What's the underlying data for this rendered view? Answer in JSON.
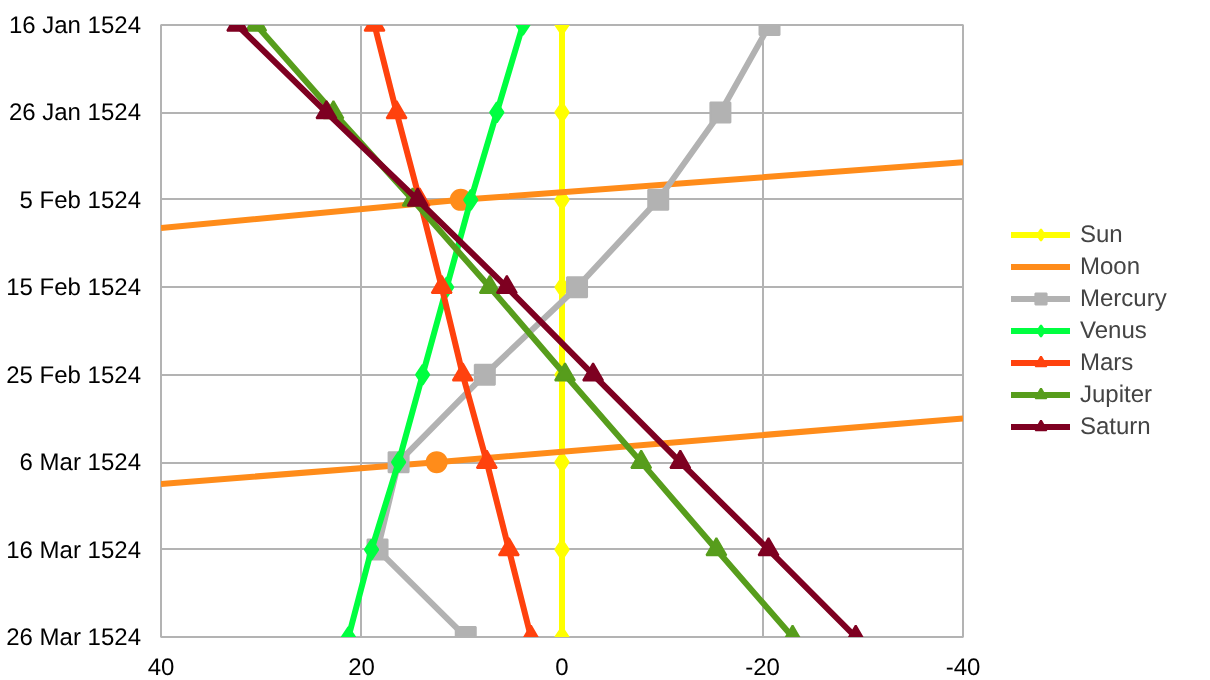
{
  "chart_data": {
    "type": "line",
    "orientation": "horizontal",
    "xlim": [
      40,
      -40
    ],
    "xticks": [
      40,
      20,
      0,
      -20,
      -40
    ],
    "ylim": [
      "1524-03-26",
      "1524-01-16"
    ],
    "yticks": [
      {
        "value": "1524-01-16",
        "label": "16 Jan 1524"
      },
      {
        "value": "1524-01-26",
        "label": "26 Jan 1524"
      },
      {
        "value": "1524-02-05",
        "label": "5 Feb 1524"
      },
      {
        "value": "1524-02-15",
        "label": "15 Feb 1524"
      },
      {
        "value": "1524-02-25",
        "label": "25 Feb 1524"
      },
      {
        "value": "1524-03-06",
        "label": "6 Mar 1524"
      },
      {
        "value": "1524-03-16",
        "label": "16 Mar 1524"
      },
      {
        "value": "1524-03-26",
        "label": "26 Mar 1524"
      }
    ],
    "grid": true,
    "legend": "right",
    "series": [
      {
        "name": "Sun",
        "color": "#ffff00",
        "marker": "diamond",
        "values": [
          0,
          0,
          0,
          0,
          0,
          0,
          0,
          0
        ],
        "x": [
          "1524-01-16",
          "1524-01-26",
          "1524-02-05",
          "1524-02-15",
          "1524-02-25",
          "1524-03-06",
          "1524-03-16",
          "1524-03-26"
        ]
      },
      {
        "name": "Moon",
        "color": "#ff8c1a",
        "marker": "none",
        "values": [
          40,
          10.1,
          -40,
          null,
          40,
          12.5,
          -40
        ],
        "x": [
          "1524-02-08T05:00",
          "1524-02-05",
          "1524-01-31T17:00",
          null,
          "1524-03-08T12:00",
          "1524-03-06",
          "1524-03-01"
        ]
      },
      {
        "type": "scatter",
        "color": "#ff8c1a",
        "marker": "circle",
        "values": [
          10.1,
          12.5
        ],
        "x": [
          "1524-02-05",
          "1524-03-06"
        ]
      },
      {
        "name": "Mercury",
        "color": "#b2b2b2",
        "marker": "square",
        "values": [
          -20.7,
          -15.8,
          -9.6,
          -1.5,
          7.7,
          16.3,
          18.4,
          9.6
        ],
        "x": [
          "1524-01-16",
          "1524-01-26",
          "1524-02-05",
          "1524-02-15",
          "1524-02-25",
          "1524-03-06",
          "1524-03-16",
          "1524-03-26"
        ]
      },
      {
        "name": "Venus",
        "color": "#00ff40",
        "marker": "diamond",
        "values": [
          3.9,
          6.5,
          9.1,
          11.5,
          13.9,
          16.3,
          19.0,
          21.3
        ],
        "x": [
          "1524-01-16",
          "1524-01-26",
          "1524-02-05",
          "1524-02-15",
          "1524-02-25",
          "1524-03-06",
          "1524-03-16",
          "1524-03-26"
        ]
      },
      {
        "name": "Mars",
        "color": "#ff420e",
        "marker": "triangle",
        "values": [
          18.7,
          16.5,
          14.2,
          12.0,
          9.9,
          7.5,
          5.3,
          3.1
        ],
        "x": [
          "1524-01-16",
          "1524-01-26",
          "1524-02-05",
          "1524-02-15",
          "1524-02-25",
          "1524-03-06",
          "1524-03-16",
          "1524-03-26"
        ]
      },
      {
        "name": "Jupiter",
        "color": "#579d1c",
        "marker": "triangle",
        "values": [
          30.5,
          22.8,
          14.9,
          7.2,
          -0.3,
          -7.9,
          -15.4,
          -23.0
        ],
        "x": [
          "1524-01-16",
          "1524-01-26",
          "1524-02-05",
          "1524-02-15",
          "1524-02-25",
          "1524-03-06",
          "1524-03-16",
          "1524-03-26"
        ]
      },
      {
        "name": "Saturn",
        "color": "#7e0021",
        "marker": "triangle",
        "values": [
          32.4,
          23.5,
          14.4,
          5.5,
          -3.1,
          -11.8,
          -20.6,
          -29.3
        ],
        "x": [
          "1524-01-16",
          "1524-01-26",
          "1524-02-05",
          "1524-02-15",
          "1524-02-25",
          "1524-03-06",
          "1524-03-16",
          "1524-03-26"
        ]
      }
    ]
  }
}
